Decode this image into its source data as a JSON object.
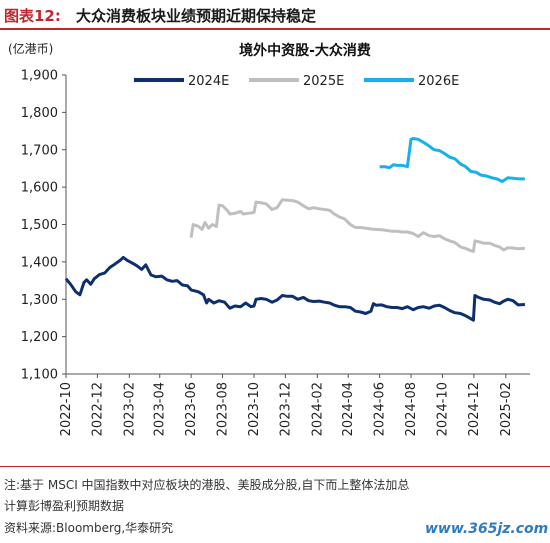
{
  "figure": {
    "label": "图表12:",
    "title": "大众消费板块业绩预期近期保持稳定",
    "note_line1": "注:基于 MSCI 中国指数中对应板块的港股、美股成分股,自下而上整体法加总",
    "note_line2": "计算彭博盈利预期数据",
    "source": "资料来源:Bloomberg,华泰研究",
    "watermark": "www.365jz.com"
  },
  "chart_data": {
    "type": "line",
    "title": "境外中资股-大众消费",
    "unit_label": "(亿港币)",
    "xlabel": "",
    "ylabel": "",
    "ylim": [
      1100,
      1900
    ],
    "yticks": [
      1100,
      1200,
      1300,
      1400,
      1500,
      1600,
      1700,
      1800,
      1900
    ],
    "ytick_labels": [
      "1,100",
      "1,200",
      "1,300",
      "1,400",
      "1,500",
      "1,600",
      "1,700",
      "1,800",
      "1,900"
    ],
    "xlim": [
      "2022-10-01",
      "2025-03-20"
    ],
    "xticks": [
      "2022-10",
      "2022-12",
      "2023-02",
      "2023-04",
      "2023-06",
      "2023-08",
      "2023-10",
      "2023-12",
      "2024-02",
      "2024-04",
      "2024-06",
      "2024-08",
      "2024-10",
      "2024-12",
      "2025-02"
    ],
    "grid": false,
    "legend_position": "top",
    "series": [
      {
        "name": "2024E",
        "color": "#0e2f6e",
        "points": [
          [
            "2022-10-01",
            1355
          ],
          [
            "2022-10-10",
            1340
          ],
          [
            "2022-10-20",
            1320
          ],
          [
            "2022-10-28",
            1312
          ],
          [
            "2022-11-05",
            1345
          ],
          [
            "2022-11-10",
            1352
          ],
          [
            "2022-11-18",
            1340
          ],
          [
            "2022-11-25",
            1355
          ],
          [
            "2022-12-05",
            1366
          ],
          [
            "2022-12-15",
            1370
          ],
          [
            "2022-12-25",
            1385
          ],
          [
            "2023-01-05",
            1395
          ],
          [
            "2023-01-15",
            1405
          ],
          [
            "2023-01-20",
            1412
          ],
          [
            "2023-01-28",
            1404
          ],
          [
            "2023-02-05",
            1398
          ],
          [
            "2023-02-15",
            1390
          ],
          [
            "2023-02-25",
            1380
          ],
          [
            "2023-03-05",
            1392
          ],
          [
            "2023-03-15",
            1365
          ],
          [
            "2023-03-25",
            1360
          ],
          [
            "2023-04-05",
            1362
          ],
          [
            "2023-04-15",
            1352
          ],
          [
            "2023-04-25",
            1348
          ],
          [
            "2023-05-05",
            1350
          ],
          [
            "2023-05-15",
            1338
          ],
          [
            "2023-05-25",
            1336
          ],
          [
            "2023-06-01",
            1325
          ],
          [
            "2023-06-15",
            1320
          ],
          [
            "2023-06-25",
            1312
          ],
          [
            "2023-07-01",
            1290
          ],
          [
            "2023-07-05",
            1300
          ],
          [
            "2023-07-15",
            1290
          ],
          [
            "2023-07-25",
            1296
          ],
          [
            "2023-08-05",
            1292
          ],
          [
            "2023-08-15",
            1276
          ],
          [
            "2023-08-25",
            1282
          ],
          [
            "2023-09-05",
            1280
          ],
          [
            "2023-09-15",
            1290
          ],
          [
            "2023-09-25",
            1280
          ],
          [
            "2023-10-01",
            1282
          ],
          [
            "2023-10-05",
            1300
          ],
          [
            "2023-10-15",
            1302
          ],
          [
            "2023-10-25",
            1300
          ],
          [
            "2023-11-05",
            1292
          ],
          [
            "2023-11-15",
            1298
          ],
          [
            "2023-11-25",
            1310
          ],
          [
            "2023-12-05",
            1308
          ],
          [
            "2023-12-15",
            1308
          ],
          [
            "2023-12-25",
            1300
          ],
          [
            "2024-01-05",
            1305
          ],
          [
            "2024-01-15",
            1296
          ],
          [
            "2024-01-25",
            1294
          ],
          [
            "2024-02-05",
            1295
          ],
          [
            "2024-02-15",
            1292
          ],
          [
            "2024-02-25",
            1290
          ],
          [
            "2024-03-05",
            1284
          ],
          [
            "2024-03-15",
            1280
          ],
          [
            "2024-03-25",
            1280
          ],
          [
            "2024-04-05",
            1278
          ],
          [
            "2024-04-15",
            1268
          ],
          [
            "2024-04-25",
            1266
          ],
          [
            "2024-05-05",
            1262
          ],
          [
            "2024-05-15",
            1268
          ],
          [
            "2024-05-20",
            1288
          ],
          [
            "2024-05-25",
            1284
          ],
          [
            "2024-06-05",
            1285
          ],
          [
            "2024-06-15",
            1280
          ],
          [
            "2024-06-25",
            1278
          ],
          [
            "2024-07-05",
            1278
          ],
          [
            "2024-07-15",
            1275
          ],
          [
            "2024-07-25",
            1280
          ],
          [
            "2024-08-05",
            1272
          ],
          [
            "2024-08-15",
            1278
          ],
          [
            "2024-08-25",
            1280
          ],
          [
            "2024-09-05",
            1276
          ],
          [
            "2024-09-15",
            1282
          ],
          [
            "2024-09-25",
            1284
          ],
          [
            "2024-10-05",
            1278
          ],
          [
            "2024-10-15",
            1270
          ],
          [
            "2024-10-25",
            1264
          ],
          [
            "2024-11-05",
            1262
          ],
          [
            "2024-11-15",
            1256
          ],
          [
            "2024-11-25",
            1248
          ],
          [
            "2024-11-30",
            1244
          ],
          [
            "2024-12-03",
            1310
          ],
          [
            "2024-12-10",
            1305
          ],
          [
            "2024-12-20",
            1300
          ],
          [
            "2025-01-01",
            1298
          ],
          [
            "2025-01-10",
            1292
          ],
          [
            "2025-01-20",
            1288
          ],
          [
            "2025-01-28",
            1295
          ],
          [
            "2025-02-05",
            1300
          ],
          [
            "2025-02-15",
            1296
          ],
          [
            "2025-02-25",
            1285
          ],
          [
            "2025-03-10",
            1286
          ]
        ]
      },
      {
        "name": "2025E",
        "color": "#bfbfbf",
        "points": [
          [
            "2023-06-01",
            1465
          ],
          [
            "2023-06-05",
            1500
          ],
          [
            "2023-06-15",
            1495
          ],
          [
            "2023-06-22",
            1487
          ],
          [
            "2023-06-28",
            1505
          ],
          [
            "2023-07-05",
            1490
          ],
          [
            "2023-07-12",
            1500
          ],
          [
            "2023-07-20",
            1495
          ],
          [
            "2023-07-25",
            1552
          ],
          [
            "2023-08-01",
            1550
          ],
          [
            "2023-08-10",
            1538
          ],
          [
            "2023-08-15",
            1528
          ],
          [
            "2023-08-25",
            1530
          ],
          [
            "2023-09-05",
            1535
          ],
          [
            "2023-09-10",
            1528
          ],
          [
            "2023-09-20",
            1530
          ],
          [
            "2023-10-01",
            1532
          ],
          [
            "2023-10-05",
            1560
          ],
          [
            "2023-10-15",
            1558
          ],
          [
            "2023-10-25",
            1555
          ],
          [
            "2023-11-05",
            1540
          ],
          [
            "2023-11-15",
            1545
          ],
          [
            "2023-11-25",
            1566
          ],
          [
            "2023-12-05",
            1565
          ],
          [
            "2023-12-15",
            1564
          ],
          [
            "2023-12-25",
            1560
          ],
          [
            "2024-01-05",
            1550
          ],
          [
            "2024-01-15",
            1542
          ],
          [
            "2024-01-25",
            1545
          ],
          [
            "2024-02-05",
            1542
          ],
          [
            "2024-02-15",
            1540
          ],
          [
            "2024-02-25",
            1538
          ],
          [
            "2024-03-05",
            1528
          ],
          [
            "2024-03-15",
            1520
          ],
          [
            "2024-03-25",
            1515
          ],
          [
            "2024-04-05",
            1500
          ],
          [
            "2024-04-15",
            1492
          ],
          [
            "2024-04-25",
            1492
          ],
          [
            "2024-05-05",
            1490
          ],
          [
            "2024-05-15",
            1488
          ],
          [
            "2024-05-25",
            1487
          ],
          [
            "2024-06-05",
            1486
          ],
          [
            "2024-06-15",
            1484
          ],
          [
            "2024-06-25",
            1482
          ],
          [
            "2024-07-05",
            1482
          ],
          [
            "2024-07-15",
            1480
          ],
          [
            "2024-07-25",
            1480
          ],
          [
            "2024-08-05",
            1476
          ],
          [
            "2024-08-15",
            1468
          ],
          [
            "2024-08-25",
            1478
          ],
          [
            "2024-09-05",
            1470
          ],
          [
            "2024-09-15",
            1468
          ],
          [
            "2024-09-25",
            1470
          ],
          [
            "2024-10-05",
            1462
          ],
          [
            "2024-10-15",
            1456
          ],
          [
            "2024-10-25",
            1452
          ],
          [
            "2024-11-05",
            1440
          ],
          [
            "2024-11-15",
            1436
          ],
          [
            "2024-11-25",
            1430
          ],
          [
            "2024-11-30",
            1428
          ],
          [
            "2024-12-03",
            1456
          ],
          [
            "2024-12-10",
            1454
          ],
          [
            "2024-12-20",
            1450
          ],
          [
            "2025-01-01",
            1450
          ],
          [
            "2025-01-10",
            1444
          ],
          [
            "2025-01-20",
            1440
          ],
          [
            "2025-01-28",
            1432
          ],
          [
            "2025-02-05",
            1438
          ],
          [
            "2025-02-15",
            1437
          ],
          [
            "2025-02-25",
            1435
          ],
          [
            "2025-03-10",
            1436
          ]
        ]
      },
      {
        "name": "2026E",
        "color": "#18b0ec",
        "points": [
          [
            "2024-06-01",
            1654
          ],
          [
            "2024-06-10",
            1655
          ],
          [
            "2024-06-20",
            1652
          ],
          [
            "2024-06-28",
            1660
          ],
          [
            "2024-07-05",
            1658
          ],
          [
            "2024-07-15",
            1658
          ],
          [
            "2024-07-25",
            1655
          ],
          [
            "2024-08-01",
            1728
          ],
          [
            "2024-08-05",
            1730
          ],
          [
            "2024-08-15",
            1728
          ],
          [
            "2024-08-25",
            1720
          ],
          [
            "2024-09-05",
            1710
          ],
          [
            "2024-09-15",
            1700
          ],
          [
            "2024-09-25",
            1698
          ],
          [
            "2024-10-05",
            1690
          ],
          [
            "2024-10-15",
            1680
          ],
          [
            "2024-10-25",
            1676
          ],
          [
            "2024-11-05",
            1662
          ],
          [
            "2024-11-15",
            1655
          ],
          [
            "2024-11-25",
            1642
          ],
          [
            "2024-12-05",
            1640
          ],
          [
            "2024-12-15",
            1632
          ],
          [
            "2024-12-25",
            1630
          ],
          [
            "2025-01-05",
            1625
          ],
          [
            "2025-01-15",
            1622
          ],
          [
            "2025-01-25",
            1615
          ],
          [
            "2025-02-05",
            1625
          ],
          [
            "2025-02-15",
            1624
          ],
          [
            "2025-02-25",
            1622
          ],
          [
            "2025-03-10",
            1622
          ]
        ]
      }
    ]
  }
}
